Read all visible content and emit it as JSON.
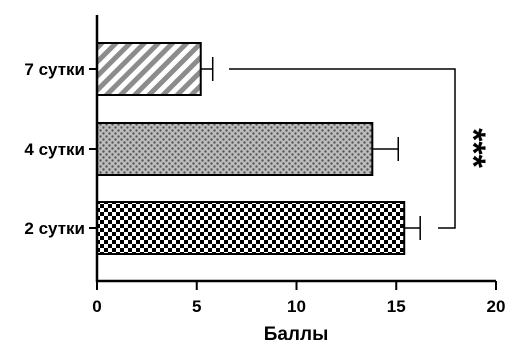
{
  "chart_data": {
    "type": "bar",
    "orientation": "horizontal",
    "categories": [
      "7 сутки",
      "4 сутки",
      "2 сутки"
    ],
    "values": [
      5.2,
      13.8,
      15.4
    ],
    "errors": [
      0.6,
      1.3,
      0.8
    ],
    "patterns": [
      "diagonal-stripes",
      "dotted-grey",
      "checkerboard"
    ],
    "xlabel": "Баллы",
    "xlim": [
      0,
      20
    ],
    "xticks": [
      "0",
      "5",
      "10",
      "15",
      "20"
    ],
    "significance": {
      "label": "***",
      "between": [
        "7 сутки",
        "2 сутки"
      ]
    },
    "grid": false,
    "legend": "none"
  }
}
